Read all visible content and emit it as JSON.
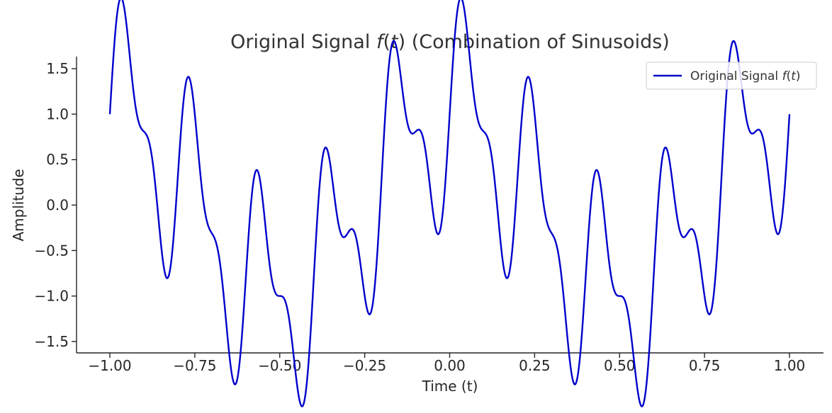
{
  "chart_data": {
    "type": "line",
    "title": "Original Signal f(t) (Combination of Sinusoids)",
    "title_parts": {
      "before": "Original Signal ",
      "f": "f",
      "open": "(",
      "t": "t",
      "after": ") (Combination of Sinusoids)"
    },
    "xlabel": "Time (t)",
    "ylabel": "Amplitude",
    "xlim": [
      -1.1,
      1.1
    ],
    "ylim": [
      -1.6,
      1.6
    ],
    "x_ticks": [
      "−1.00",
      "−0.75",
      "−0.50",
      "−0.25",
      "0.00",
      "0.25",
      "0.50",
      "0.75",
      "1.00"
    ],
    "x_tick_values": [
      -1.0,
      -0.75,
      -0.5,
      -0.25,
      0.0,
      0.25,
      0.5,
      0.75,
      1.0
    ],
    "y_ticks": [
      "−1.5",
      "−1.0",
      "−0.5",
      "0.0",
      "0.5",
      "1.0",
      "1.5"
    ],
    "y_tick_values": [
      -1.5,
      -1.0,
      -0.5,
      0.0,
      0.5,
      1.0,
      1.5
    ],
    "grid": false,
    "legend_position": "top-right",
    "series": [
      {
        "name": "Original Signal f(t)",
        "legend_parts": {
          "before": "Original Signal ",
          "f": "f",
          "open": "(",
          "t": "t",
          "close": ")"
        },
        "color": "#0000cc",
        "expression": "sin(2π·5t) + 0.5·sin(2π·10t) + cos(2π·t)"
      }
    ]
  }
}
